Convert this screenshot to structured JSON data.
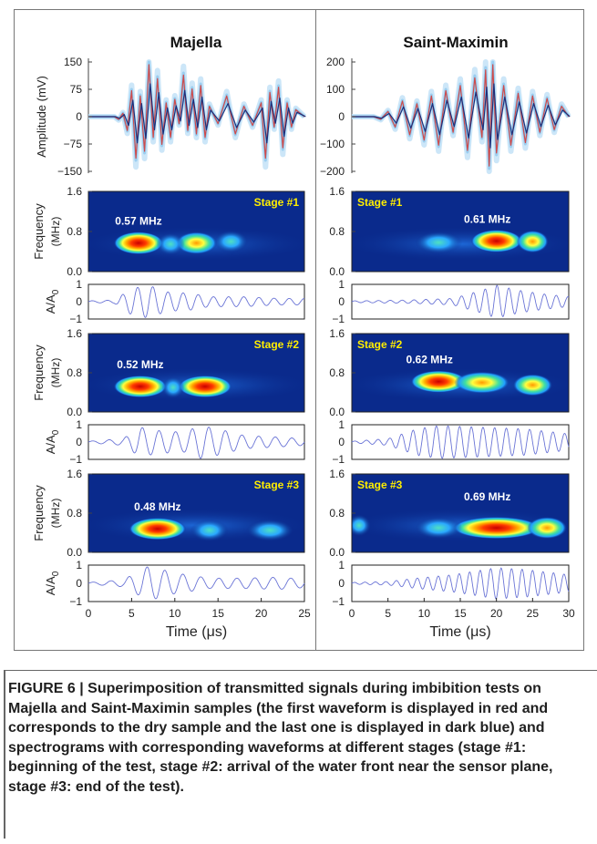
{
  "figure": {
    "caption": "FIGURE 6 | Superimposition of transmitted signals during imbibition tests on Majella and Saint-Maximin samples (the first waveform is displayed in red and corresponds to the dry sample and the last one is displayed in dark blue) and spectrograms with corresponding waveforms at different stages (stage #1: beginning of the test, stage #2: arrival of the water front near the sensor plane, stage #3: end of the test)."
  },
  "colors": {
    "waveform_band": "#8ec8ee",
    "waveform_light": "#bfe0f6",
    "first_waveform": "#d04a4a",
    "last_waveform": "#1c2f7a",
    "stage_label": "#ffee00",
    "spectrogram_bg": "#0a2a8c",
    "small_waveform": "#6a74d6"
  },
  "chart_data": [
    {
      "id": "majella-amplitude",
      "type": "line",
      "title": "Majella",
      "ylabel": "Amplitude (mV)",
      "yticks": [
        "150",
        "75",
        "0",
        "−75",
        "−150"
      ],
      "ytick_values": [
        150,
        75,
        0,
        -75,
        -150
      ],
      "ylim": [
        -150,
        150
      ],
      "xlim": [
        0,
        25
      ],
      "series": [
        {
          "x": [
            0,
            2,
            3,
            3.5,
            4,
            4.5,
            5,
            5.5,
            6,
            6.5,
            7,
            7.5,
            8,
            8.5,
            9,
            9.5,
            10,
            10.5,
            11,
            11.5,
            12,
            12.5,
            13,
            13.5,
            14,
            15,
            16,
            17,
            18,
            19,
            20,
            20.5,
            21,
            21.5,
            22,
            22.5,
            23,
            23.5,
            24,
            25
          ],
          "y": [
            0,
            0,
            0,
            -8,
            10,
            -40,
            75,
            -120,
            60,
            -100,
            150,
            -60,
            110,
            -80,
            40,
            -60,
            50,
            -20,
            120,
            -40,
            80,
            -50,
            90,
            -60,
            30,
            -20,
            60,
            -50,
            30,
            -25,
            40,
            -120,
            70,
            -30,
            85,
            -90,
            40,
            -30,
            20,
            0
          ]
        }
      ]
    },
    {
      "id": "saint-maximin-amplitude",
      "type": "line",
      "title": "Saint-Maximin",
      "ylabel": "",
      "yticks": [
        "200",
        "100",
        "0",
        "−100",
        "−200"
      ],
      "ytick_values": [
        200,
        100,
        0,
        -100,
        -200
      ],
      "ylim": [
        -200,
        200
      ],
      "xlim": [
        0,
        30
      ],
      "series": [
        {
          "x": [
            0,
            3,
            4,
            5,
            6,
            7,
            8,
            9,
            10,
            11,
            12,
            13,
            14,
            15,
            16,
            17,
            18,
            18.5,
            19,
            19.5,
            20,
            21,
            22,
            23,
            24,
            25,
            26,
            27,
            28,
            29,
            30
          ],
          "y": [
            0,
            0,
            -10,
            20,
            -40,
            60,
            -70,
            50,
            -90,
            80,
            -110,
            100,
            -60,
            120,
            -130,
            150,
            -80,
            180,
            -190,
            200,
            -140,
            120,
            -110,
            90,
            -100,
            80,
            -60,
            70,
            -50,
            40,
            0
          ]
        }
      ]
    },
    {
      "id": "majella-stage1",
      "type": "heatmap",
      "stage": "Stage #1",
      "peak_label": "0.57 MHz",
      "peak_frequency_mhz": 0.57,
      "peak_time_us": 5.8,
      "ylabel": "Frequency (MHz)",
      "yticks": [
        "1.6",
        "0.8",
        "0.0"
      ],
      "ylim": [
        0,
        1.6
      ],
      "xlim": [
        0,
        25
      ],
      "blobs": [
        {
          "t": 5.8,
          "f": 0.57,
          "strength": 1.0,
          "width_us": 2.6
        },
        {
          "t": 12.5,
          "f": 0.57,
          "strength": 0.6,
          "width_us": 2.2
        },
        {
          "t": 9.5,
          "f": 0.55,
          "strength": 0.45,
          "width_us": 1.5
        },
        {
          "t": 16.5,
          "f": 0.6,
          "strength": 0.3,
          "width_us": 1.8
        }
      ]
    },
    {
      "id": "saint-maximin-stage1",
      "type": "heatmap",
      "stage": "Stage #1",
      "peak_label": "0.61 MHz",
      "peak_frequency_mhz": 0.61,
      "peak_time_us": 20,
      "ylabel": "",
      "yticks": [
        "1.6",
        "0.8",
        "0.0"
      ],
      "ylim": [
        0,
        1.6
      ],
      "xlim": [
        0,
        30
      ],
      "blobs": [
        {
          "t": 20,
          "f": 0.61,
          "strength": 1.0,
          "width_us": 3.2
        },
        {
          "t": 25,
          "f": 0.6,
          "strength": 0.7,
          "width_us": 2.0
        },
        {
          "t": 12,
          "f": 0.58,
          "strength": 0.3,
          "width_us": 3.0
        }
      ]
    },
    {
      "id": "majella-stage1-wave",
      "type": "line",
      "ylabel": "A/A0",
      "yticks": [
        "1",
        "0",
        "−1"
      ],
      "ylim": [
        -1,
        1
      ],
      "xlim": [
        0,
        25
      ],
      "wave": {
        "f_mhz": 0.57,
        "envelope": [
          [
            0,
            0.05
          ],
          [
            3,
            0.1
          ],
          [
            5,
            0.8
          ],
          [
            7,
            1.0
          ],
          [
            9,
            0.6
          ],
          [
            12,
            0.5
          ],
          [
            14,
            0.3
          ],
          [
            18,
            0.3
          ],
          [
            22,
            0.2
          ],
          [
            25,
            0.2
          ]
        ]
      }
    },
    {
      "id": "saint-maximin-stage1-wave",
      "type": "line",
      "ylabel": "",
      "yticks": [
        "1",
        "0",
        "−1"
      ],
      "ylim": [
        -1,
        1
      ],
      "xlim": [
        0,
        30
      ],
      "wave": {
        "f_mhz": 0.61,
        "envelope": [
          [
            0,
            0.05
          ],
          [
            8,
            0.1
          ],
          [
            14,
            0.2
          ],
          [
            18,
            0.7
          ],
          [
            20,
            1.0
          ],
          [
            23,
            0.7
          ],
          [
            26,
            0.5
          ],
          [
            30,
            0.3
          ]
        ]
      }
    },
    {
      "id": "majella-stage2",
      "type": "heatmap",
      "stage": "Stage #2",
      "peak_label": "0.52 MHz",
      "peak_frequency_mhz": 0.52,
      "peak_time_us": 6,
      "ylabel": "Frequency (MHz)",
      "yticks": [
        "1.6",
        "0.8",
        "0.0"
      ],
      "ylim": [
        0,
        1.6
      ],
      "xlim": [
        0,
        25
      ],
      "blobs": [
        {
          "t": 6,
          "f": 0.52,
          "strength": 1.0,
          "width_us": 2.8
        },
        {
          "t": 13.5,
          "f": 0.52,
          "strength": 0.95,
          "width_us": 2.8
        },
        {
          "t": 9.8,
          "f": 0.5,
          "strength": 0.35,
          "width_us": 1.2
        }
      ]
    },
    {
      "id": "saint-maximin-stage2",
      "type": "heatmap",
      "stage": "Stage #2",
      "peak_label": "0.62 MHz",
      "peak_frequency_mhz": 0.62,
      "peak_time_us": 12,
      "ylabel": "",
      "yticks": [
        "1.6",
        "0.8",
        "0.0"
      ],
      "ylim": [
        0,
        1.6
      ],
      "xlim": [
        0,
        30
      ],
      "blobs": [
        {
          "t": 12,
          "f": 0.62,
          "strength": 1.0,
          "width_us": 3.5
        },
        {
          "t": 18,
          "f": 0.6,
          "strength": 0.75,
          "width_us": 3.5
        },
        {
          "t": 25,
          "f": 0.55,
          "strength": 0.75,
          "width_us": 2.5
        }
      ]
    },
    {
      "id": "majella-stage2-wave",
      "type": "line",
      "ylabel": "A/A0",
      "yticks": [
        "1",
        "0",
        "−1"
      ],
      "ylim": [
        -1,
        1
      ],
      "xlim": [
        0,
        25
      ],
      "wave": {
        "f_mhz": 0.52,
        "envelope": [
          [
            0,
            0.05
          ],
          [
            4,
            0.2
          ],
          [
            6,
            0.9
          ],
          [
            8,
            0.7
          ],
          [
            11,
            0.6
          ],
          [
            13,
            1.0
          ],
          [
            15,
            0.8
          ],
          [
            18,
            0.4
          ],
          [
            22,
            0.3
          ],
          [
            25,
            0.2
          ]
        ]
      }
    },
    {
      "id": "saint-maximin-stage2-wave",
      "type": "line",
      "ylabel": "",
      "yticks": [
        "1",
        "0",
        "−1"
      ],
      "ylim": [
        -1,
        1
      ],
      "xlim": [
        0,
        30
      ],
      "wave": {
        "f_mhz": 0.62,
        "envelope": [
          [
            0,
            0.05
          ],
          [
            5,
            0.2
          ],
          [
            9,
            0.8
          ],
          [
            12,
            1.0
          ],
          [
            18,
            0.9
          ],
          [
            24,
            0.8
          ],
          [
            28,
            0.6
          ],
          [
            30,
            0.5
          ]
        ]
      }
    },
    {
      "id": "majella-stage3",
      "type": "heatmap",
      "stage": "Stage #3",
      "peak_label": "0.48 MHz",
      "peak_frequency_mhz": 0.48,
      "peak_time_us": 8,
      "ylabel": "Frequency (MHz)",
      "yticks": [
        "1.6",
        "0.8",
        "0.0"
      ],
      "ylim": [
        0,
        1.6
      ],
      "xlim": [
        0,
        25
      ],
      "blobs": [
        {
          "t": 8,
          "f": 0.48,
          "strength": 1.0,
          "width_us": 3.0
        },
        {
          "t": 21,
          "f": 0.45,
          "strength": 0.4,
          "width_us": 2.5
        },
        {
          "t": 14,
          "f": 0.45,
          "strength": 0.25,
          "width_us": 2.0
        }
      ]
    },
    {
      "id": "saint-maximin-stage3",
      "type": "heatmap",
      "stage": "Stage #3",
      "peak_label": "0.69 MHz",
      "peak_frequency_mhz": 0.69,
      "peak_time_us": 20,
      "ylabel": "",
      "yticks": [
        "1.6",
        "0.8",
        "0.0"
      ],
      "ylim": [
        0,
        1.6
      ],
      "xlim": [
        0,
        30
      ],
      "blobs": [
        {
          "t": 20,
          "f": 0.5,
          "strength": 1.0,
          "width_us": 5.5
        },
        {
          "t": 27,
          "f": 0.5,
          "strength": 0.75,
          "width_us": 2.5
        },
        {
          "t": 12,
          "f": 0.5,
          "strength": 0.45,
          "width_us": 3.0
        },
        {
          "t": 1,
          "f": 0.55,
          "strength": 0.5,
          "width_us": 1.5
        }
      ]
    },
    {
      "id": "majella-stage3-wave",
      "type": "line",
      "ylabel": "A/A0",
      "yticks": [
        "1",
        "0",
        "−1"
      ],
      "ylim": [
        -1,
        1
      ],
      "xlim": [
        0,
        25
      ],
      "xticks": [
        "0",
        "5",
        "10",
        "15",
        "20",
        "25"
      ],
      "xtick_values": [
        0,
        5,
        10,
        15,
        20,
        25
      ],
      "xlabel": "Time (μs)",
      "wave": {
        "f_mhz": 0.48,
        "envelope": [
          [
            0,
            0.05
          ],
          [
            4,
            0.2
          ],
          [
            7,
            1.0
          ],
          [
            10,
            0.6
          ],
          [
            14,
            0.3
          ],
          [
            18,
            0.3
          ],
          [
            22,
            0.35
          ],
          [
            25,
            0.25
          ]
        ]
      }
    },
    {
      "id": "saint-maximin-stage3-wave",
      "type": "line",
      "ylabel": "",
      "yticks": [
        "1",
        "0",
        "−1"
      ],
      "ylim": [
        -1,
        1
      ],
      "xlim": [
        0,
        30
      ],
      "xticks": [
        "0",
        "5",
        "10",
        "15",
        "20",
        "25",
        "30"
      ],
      "xtick_values": [
        0,
        5,
        10,
        15,
        20,
        25,
        30
      ],
      "xlabel": "Time (μs)",
      "wave": {
        "f_mhz": 0.69,
        "envelope": [
          [
            0,
            0.05
          ],
          [
            5,
            0.1
          ],
          [
            9,
            0.3
          ],
          [
            14,
            0.5
          ],
          [
            20,
            0.9
          ],
          [
            24,
            0.8
          ],
          [
            28,
            0.6
          ],
          [
            30,
            0.5
          ]
        ]
      }
    }
  ]
}
